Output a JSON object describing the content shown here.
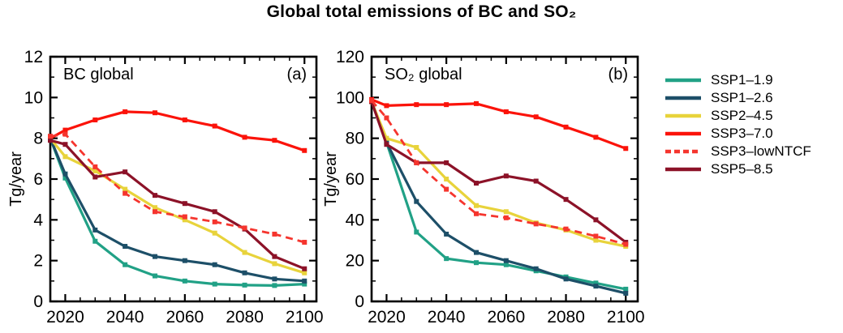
{
  "title": "Global total emissions of BC and SO₂",
  "chart_data": [
    {
      "type": "line",
      "panel": "(a)",
      "label": "BC global",
      "ylabel": "Tg/year",
      "xlabel": "",
      "xlim": [
        2015,
        2104
      ],
      "ylim": [
        0,
        12
      ],
      "xticks": [
        2020,
        2040,
        2060,
        2080,
        2100
      ],
      "yticks": [
        0,
        2,
        4,
        6,
        8,
        10,
        12
      ],
      "x_minor_step": 5,
      "y_minor_step": 1,
      "grid": "off",
      "legend_position": "right",
      "x": [
        2015,
        2020,
        2030,
        2040,
        2050,
        2060,
        2070,
        2080,
        2090,
        2100
      ],
      "series": [
        {
          "name": "SSP1–1.9",
          "color": "#21a186",
          "linestyle": "solid",
          "values": [
            8.0,
            6.05,
            2.95,
            1.8,
            1.25,
            1.0,
            0.85,
            0.8,
            0.78,
            0.85
          ]
        },
        {
          "name": "SSP1–2.6",
          "color": "#1d4f68",
          "linestyle": "solid",
          "values": [
            8.0,
            6.25,
            3.5,
            2.7,
            2.2,
            2.0,
            1.8,
            1.4,
            1.1,
            1.0
          ]
        },
        {
          "name": "SSP2–4.5",
          "color": "#e8d33b",
          "linestyle": "solid",
          "values": [
            8.0,
            7.1,
            6.4,
            5.5,
            4.6,
            4.0,
            3.35,
            2.4,
            1.85,
            1.4
          ]
        },
        {
          "name": "SSP3–7.0",
          "color": "#fb130a",
          "linestyle": "solid",
          "values": [
            8.0,
            8.4,
            8.9,
            9.3,
            9.25,
            8.9,
            8.6,
            8.05,
            7.9,
            7.4
          ]
        },
        {
          "name": "SSP3–lowNTCF",
          "color": "#f5352e",
          "linestyle": "dashed",
          "values": [
            8.1,
            8.2,
            6.6,
            5.3,
            4.4,
            4.15,
            3.9,
            3.6,
            3.3,
            2.9
          ]
        },
        {
          "name": "SSP5–8.5",
          "color": "#8c1228",
          "linestyle": "solid",
          "values": [
            7.9,
            7.7,
            6.1,
            6.35,
            5.2,
            4.8,
            4.4,
            3.55,
            2.2,
            1.6
          ]
        }
      ]
    },
    {
      "type": "line",
      "panel": "(b)",
      "label": "SO₂ global",
      "ylabel": "Tg/year",
      "xlabel": "",
      "xlim": [
        2015,
        2104
      ],
      "ylim": [
        0,
        120
      ],
      "xticks": [
        2020,
        2040,
        2060,
        2080,
        2100
      ],
      "yticks": [
        0,
        20,
        40,
        60,
        80,
        100,
        120
      ],
      "x_minor_step": 5,
      "y_minor_step": 10,
      "grid": "off",
      "legend_position": "right",
      "x": [
        2015,
        2020,
        2030,
        2040,
        2050,
        2060,
        2070,
        2080,
        2090,
        2100
      ],
      "series": [
        {
          "name": "SSP1–1.9",
          "color": "#21a186",
          "linestyle": "solid",
          "values": [
            98,
            78,
            34,
            21,
            19,
            18,
            15,
            12,
            9,
            6
          ]
        },
        {
          "name": "SSP1–2.6",
          "color": "#1d4f68",
          "linestyle": "solid",
          "values": [
            98,
            78,
            49,
            33,
            24,
            20,
            16,
            11,
            7.5,
            4
          ]
        },
        {
          "name": "SSP2–4.5",
          "color": "#e8d33b",
          "linestyle": "solid",
          "values": [
            98,
            80,
            75.5,
            60,
            47,
            44,
            38.5,
            35,
            30,
            27
          ]
        },
        {
          "name": "SSP3–7.0",
          "color": "#fb130a",
          "linestyle": "solid",
          "values": [
            99,
            96,
            96.5,
            96.5,
            97,
            93,
            90.5,
            85.5,
            80.5,
            75
          ]
        },
        {
          "name": "SSP3–lowNTCF",
          "color": "#f5352e",
          "linestyle": "dashed",
          "values": [
            98.5,
            90,
            68,
            55,
            43,
            41,
            38,
            35.5,
            32,
            28
          ]
        },
        {
          "name": "SSP5–8.5",
          "color": "#8c1228",
          "linestyle": "solid",
          "values": [
            98,
            77,
            68,
            68,
            58,
            61.5,
            59,
            50,
            40,
            29
          ]
        }
      ]
    }
  ]
}
